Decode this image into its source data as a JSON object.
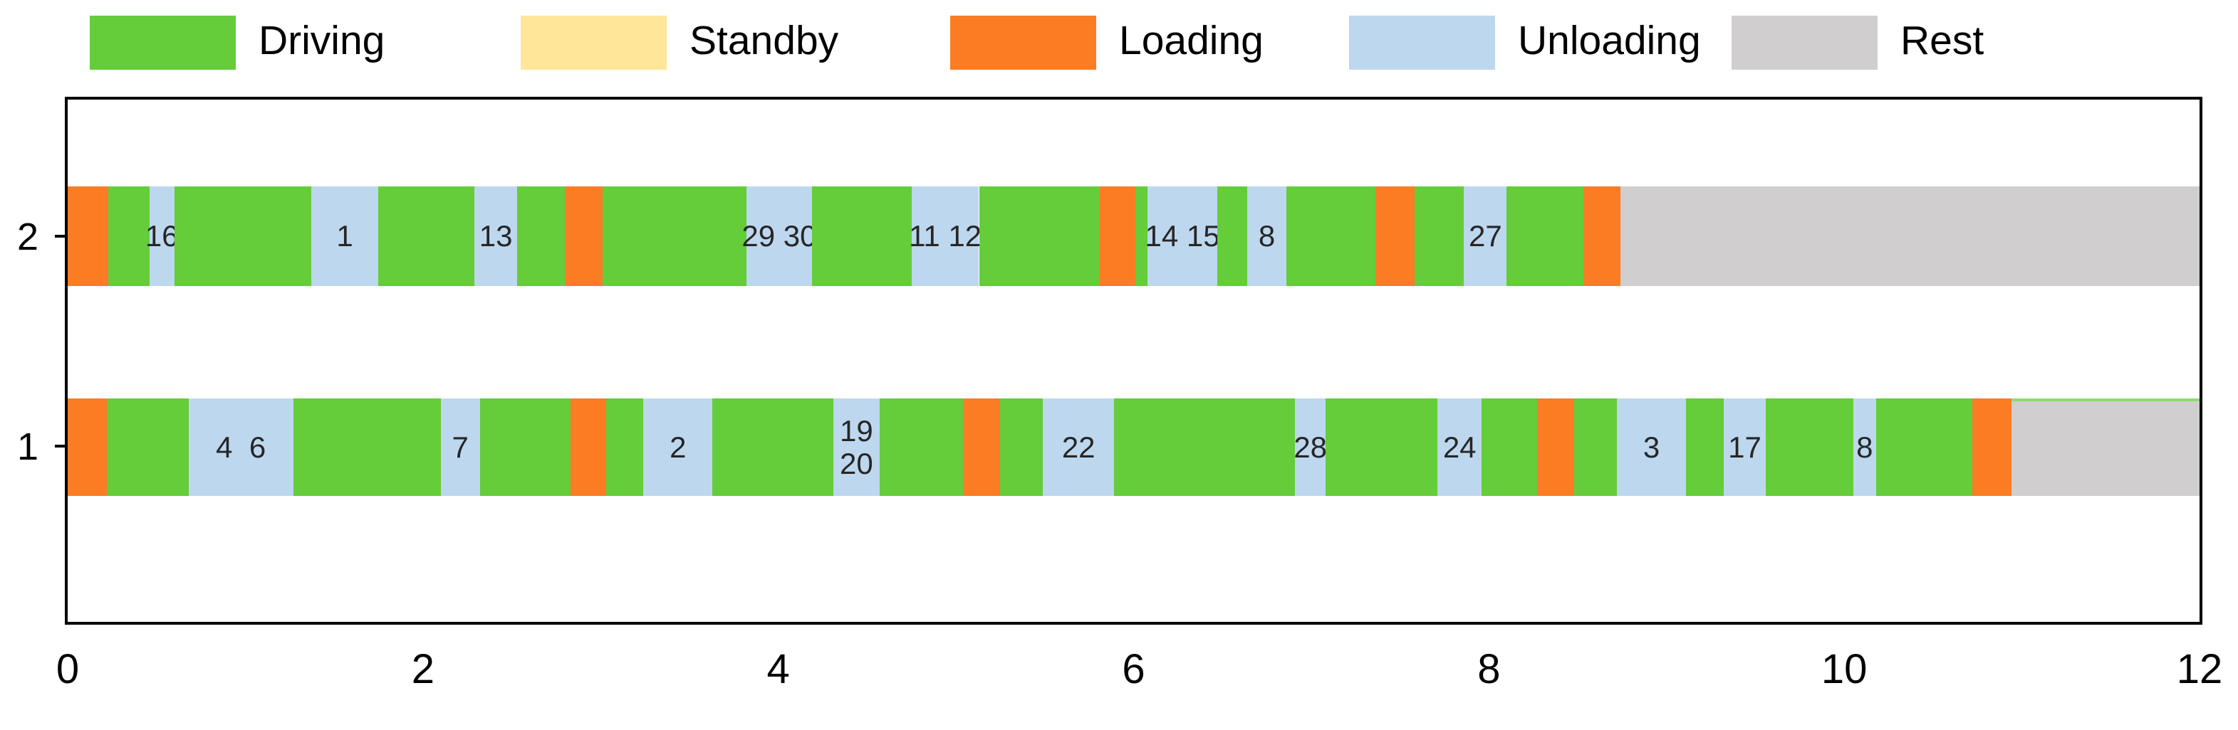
{
  "colors": {
    "driving": "#65CC3A",
    "standby": "#FFE699",
    "loading": "#FB7C23",
    "unloading": "#BDD7EE",
    "rest": "#D0CECE",
    "axis": "#000000",
    "segment_label": "#262626"
  },
  "legend": {
    "items": [
      {
        "label": "Driving",
        "color_key": "driving"
      },
      {
        "label": "Standby",
        "color_key": "standby"
      },
      {
        "label": "Loading",
        "color_key": "loading"
      },
      {
        "label": "Unloading",
        "color_key": "unloading"
      },
      {
        "label": "Rest",
        "color_key": "rest"
      }
    ]
  },
  "axis": {
    "x_min": 0,
    "x_max": 12,
    "x_ticks": [
      "0",
      "2",
      "4",
      "6",
      "8",
      "10",
      "12"
    ],
    "row_labels": [
      "2",
      "1"
    ]
  },
  "chart_data": {
    "type": "gantt",
    "xlim": [
      0,
      12
    ],
    "x_tick_values": [
      0,
      2,
      4,
      6,
      8,
      10,
      12
    ],
    "legend_entries": [
      "Driving",
      "Standby",
      "Loading",
      "Unloading",
      "Rest"
    ],
    "rows": [
      {
        "label": "2",
        "segments": [
          {
            "activity": "Loading",
            "start": 0.0,
            "end": 0.23
          },
          {
            "activity": "Driving",
            "start": 0.23,
            "end": 0.46
          },
          {
            "activity": "Unloading",
            "start": 0.46,
            "end": 0.6,
            "label": "16"
          },
          {
            "activity": "Driving",
            "start": 0.6,
            "end": 1.37
          },
          {
            "activity": "Unloading",
            "start": 1.37,
            "end": 1.75,
            "label": "1"
          },
          {
            "activity": "Driving",
            "start": 1.75,
            "end": 2.29
          },
          {
            "activity": "Unloading",
            "start": 2.29,
            "end": 2.53,
            "label": "13"
          },
          {
            "activity": "Driving",
            "start": 2.53,
            "end": 2.8
          },
          {
            "activity": "Loading",
            "start": 2.8,
            "end": 3.01
          },
          {
            "activity": "Driving",
            "start": 3.01,
            "end": 3.82
          },
          {
            "activity": "Unloading",
            "start": 3.82,
            "end": 4.19,
            "label": "29 30"
          },
          {
            "activity": "Driving",
            "start": 4.19,
            "end": 4.75
          },
          {
            "activity": "Unloading",
            "start": 4.75,
            "end": 5.13,
            "label": "11 12"
          },
          {
            "activity": "Driving",
            "start": 5.13,
            "end": 5.81
          },
          {
            "activity": "Loading",
            "start": 5.81,
            "end": 6.01
          },
          {
            "activity": "Driving",
            "start": 6.01,
            "end": 6.08
          },
          {
            "activity": "Unloading",
            "start": 6.08,
            "end": 6.47,
            "label": "14 15"
          },
          {
            "activity": "Driving",
            "start": 6.47,
            "end": 6.64
          },
          {
            "activity": "Unloading",
            "start": 6.64,
            "end": 6.86,
            "label": "8"
          },
          {
            "activity": "Driving",
            "start": 6.86,
            "end": 7.36
          },
          {
            "activity": "Loading",
            "start": 7.36,
            "end": 7.58
          },
          {
            "activity": "Driving",
            "start": 7.58,
            "end": 7.86
          },
          {
            "activity": "Unloading",
            "start": 7.86,
            "end": 8.1,
            "label": "27"
          },
          {
            "activity": "Driving",
            "start": 8.1,
            "end": 8.53
          },
          {
            "activity": "Loading",
            "start": 8.53,
            "end": 8.74
          },
          {
            "activity": "Rest",
            "start": 8.74,
            "end": 12.0
          }
        ]
      },
      {
        "label": "1",
        "segments": [
          {
            "activity": "Loading",
            "start": 0.0,
            "end": 0.22
          },
          {
            "activity": "Driving",
            "start": 0.22,
            "end": 0.68
          },
          {
            "activity": "Unloading",
            "start": 0.68,
            "end": 1.27,
            "label": "4  6"
          },
          {
            "activity": "Driving",
            "start": 1.27,
            "end": 2.1
          },
          {
            "activity": "Unloading",
            "start": 2.1,
            "end": 2.32,
            "label": "7"
          },
          {
            "activity": "Driving",
            "start": 2.32,
            "end": 2.83
          },
          {
            "activity": "Loading",
            "start": 2.83,
            "end": 3.03
          },
          {
            "activity": "Driving",
            "start": 3.03,
            "end": 3.24
          },
          {
            "activity": "Unloading",
            "start": 3.24,
            "end": 3.63,
            "label": "2"
          },
          {
            "activity": "Driving",
            "start": 3.63,
            "end": 4.31
          },
          {
            "activity": "Unloading",
            "start": 4.31,
            "end": 4.57,
            "label": "19\n20"
          },
          {
            "activity": "Driving",
            "start": 4.57,
            "end": 5.04
          },
          {
            "activity": "Loading",
            "start": 5.04,
            "end": 5.25
          },
          {
            "activity": "Driving",
            "start": 5.25,
            "end": 5.49
          },
          {
            "activity": "Unloading",
            "start": 5.49,
            "end": 5.89,
            "label": "22"
          },
          {
            "activity": "Driving",
            "start": 5.89,
            "end": 6.91
          },
          {
            "activity": "Unloading",
            "start": 6.91,
            "end": 7.08,
            "label": "28"
          },
          {
            "activity": "Driving",
            "start": 7.08,
            "end": 7.71
          },
          {
            "activity": "Unloading",
            "start": 7.71,
            "end": 7.96,
            "label": "24"
          },
          {
            "activity": "Driving",
            "start": 7.96,
            "end": 8.27
          },
          {
            "activity": "Loading",
            "start": 8.27,
            "end": 8.48
          },
          {
            "activity": "Driving",
            "start": 8.48,
            "end": 8.72
          },
          {
            "activity": "Unloading",
            "start": 8.72,
            "end": 9.11,
            "label": "3"
          },
          {
            "activity": "Driving",
            "start": 9.11,
            "end": 9.32
          },
          {
            "activity": "Unloading",
            "start": 9.32,
            "end": 9.56,
            "label": "17"
          },
          {
            "activity": "Driving",
            "start": 9.56,
            "end": 10.05
          },
          {
            "activity": "Unloading",
            "start": 10.05,
            "end": 10.18,
            "label": "8"
          },
          {
            "activity": "Driving",
            "start": 10.18,
            "end": 10.72
          },
          {
            "activity": "Loading",
            "start": 10.72,
            "end": 10.94
          },
          {
            "activity": "Rest",
            "start": 10.94,
            "end": 12.0,
            "accent_top": true
          }
        ]
      }
    ]
  }
}
